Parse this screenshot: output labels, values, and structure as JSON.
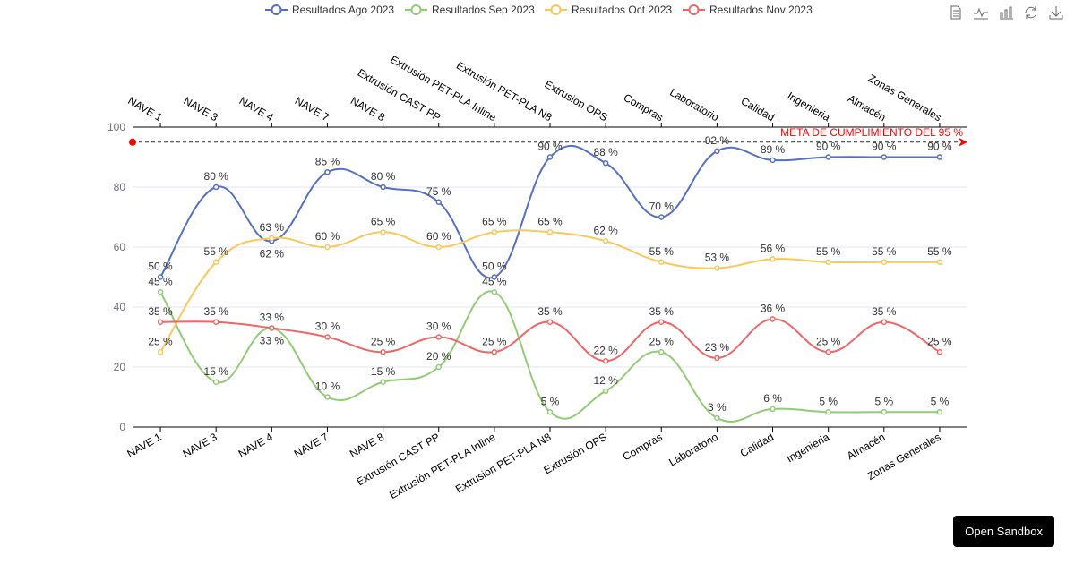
{
  "toolbox": {
    "icons": [
      "data-view-icon",
      "line-chart-icon",
      "bar-chart-icon",
      "restore-icon",
      "download-icon"
    ]
  },
  "sandbox_button": "Open Sandbox",
  "chart_data": {
    "type": "line",
    "smooth": true,
    "categories": [
      "NAVE 1",
      "NAVE 3",
      "NAVE 4",
      "NAVE 7",
      "NAVE 8",
      "Extrusión  CAST PP",
      "Extrusión PET-PLA Inline",
      "Extrusión PET-PLA N8",
      "Extrusión OPS",
      "Compras",
      "Laboratorio",
      "Calidad",
      "Ingenieria",
      "Almacén",
      "Zonas Generales"
    ],
    "ylim": [
      0,
      100
    ],
    "yticks": [
      0,
      20,
      40,
      60,
      80,
      100
    ],
    "grid": true,
    "legend_position": "top",
    "label_suffix": " %",
    "series": [
      {
        "name": "Resultados Ago 2023",
        "color": "#5470c6",
        "values": [
          50,
          80,
          62,
          85,
          80,
          75,
          50,
          90,
          88,
          70,
          92,
          89,
          90,
          90,
          90
        ]
      },
      {
        "name": "Resultados Sep 2023",
        "color": "#91cc75",
        "values": [
          45,
          15,
          33,
          10,
          15,
          20,
          45,
          5,
          12,
          25,
          3,
          6,
          5,
          5,
          5
        ]
      },
      {
        "name": "Resultados Oct 2023",
        "color": "#fac858",
        "values": [
          25,
          55,
          63,
          60,
          65,
          60,
          65,
          65,
          62,
          55,
          53,
          56,
          55,
          55,
          55
        ]
      },
      {
        "name": "Resultados Nov 2023",
        "color": "#ee6666",
        "values": [
          35,
          35,
          33,
          30,
          25,
          30,
          25,
          35,
          22,
          35,
          23,
          36,
          25,
          35,
          25
        ]
      }
    ],
    "markline": {
      "value": 95,
      "label": "META DE CUMPLIMIENTO DEL 95 %",
      "color": "#ff0000"
    }
  }
}
